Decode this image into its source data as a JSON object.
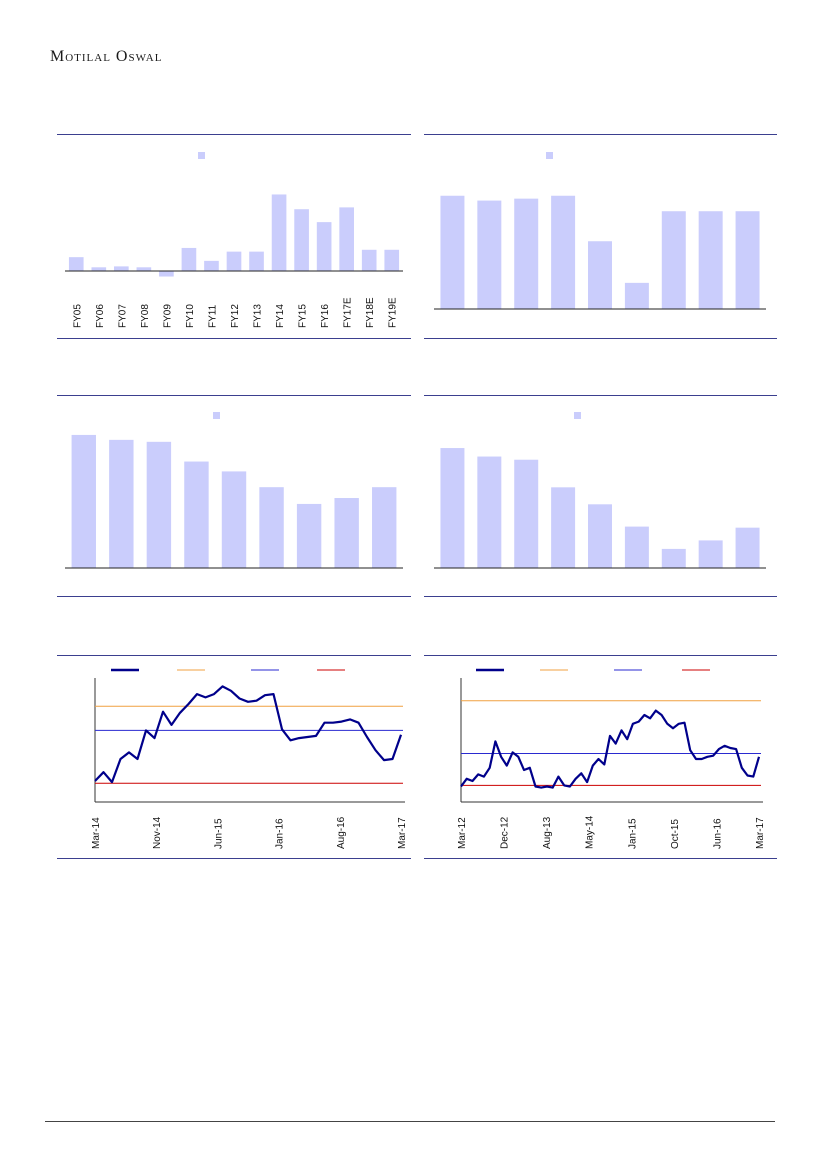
{
  "header": {
    "logo": "Motilal Oswal"
  },
  "colors": {
    "bar": "#cacdfc",
    "line_main": "#00008b",
    "line_upper": "#f0a040",
    "line_mid": "#2a2ad0",
    "line_lower": "#cc0000",
    "rule": "#3b3f8f"
  },
  "chart_data": [
    {
      "type": "bar",
      "categories": [
        "FY05",
        "FY06",
        "FY07",
        "FY08",
        "FY09",
        "FY10",
        "FY11",
        "FY12",
        "FY13",
        "FY14",
        "FY15",
        "FY16",
        "FY17E",
        "FY18E",
        "FY19E"
      ],
      "values": [
        15,
        4,
        5,
        4,
        -6,
        25,
        11,
        21,
        21,
        83,
        67,
        53,
        69,
        23,
        23
      ],
      "ylim": [
        -10,
        90
      ]
    },
    {
      "type": "bar",
      "categories": [
        "",
        "",
        "",
        "",
        "",
        "",
        "",
        "",
        ""
      ],
      "values": [
        117,
        112,
        114,
        117,
        70,
        27,
        101,
        101,
        101
      ],
      "ylim": [
        0,
        125
      ]
    },
    {
      "type": "bar",
      "categories": [
        "",
        "",
        "",
        "",
        "",
        "",
        "",
        "",
        ""
      ],
      "values": [
        135,
        130,
        128,
        108,
        98,
        82,
        65,
        71,
        82
      ],
      "ylim": [
        0,
        140
      ]
    },
    {
      "type": "bar",
      "categories": [
        "",
        "",
        "",
        "",
        "",
        "",
        "",
        "",
        ""
      ],
      "values": [
        113,
        105,
        102,
        76,
        60,
        39,
        18,
        26,
        38
      ],
      "ylim": [
        0,
        130
      ]
    },
    {
      "type": "line",
      "x_ticks": [
        "Mar-14",
        "Nov-14",
        "Jun-15",
        "Jan-16",
        "Aug-16",
        "Mar-17"
      ],
      "series": [
        {
          "values": [
            10,
            18,
            9,
            30,
            36,
            30,
            56,
            49,
            73,
            61,
            72,
            80,
            89,
            86,
            89,
            96,
            92,
            85,
            82,
            83,
            88,
            89,
            57,
            47,
            49,
            50,
            51,
            63,
            63,
            64,
            66,
            63,
            50,
            38,
            29,
            30,
            52
          ]
        }
      ],
      "reference_lines": {
        "upper": 78,
        "mid": 56,
        "lower": 8
      },
      "ylim": [
        0,
        100
      ]
    },
    {
      "type": "line",
      "x_ticks": [
        "Mar-12",
        "Dec-12",
        "Aug-13",
        "May-14",
        "Jan-15",
        "Oct-15",
        "Jun-16",
        "Mar-17"
      ],
      "series": [
        {
          "values": [
            5,
            12,
            10,
            16,
            14,
            22,
            46,
            32,
            24,
            36,
            32,
            20,
            22,
            5,
            4,
            5,
            4,
            14,
            6,
            5,
            12,
            17,
            9,
            24,
            30,
            25,
            51,
            44,
            56,
            48,
            62,
            64,
            70,
            67,
            74,
            70,
            62,
            58,
            62,
            63,
            38,
            30,
            30,
            32,
            33,
            39,
            42,
            40,
            39,
            22,
            15,
            14,
            32
          ]
        }
      ],
      "reference_lines": {
        "upper": 83,
        "mid": 35,
        "lower": 6
      },
      "ylim": [
        0,
        100
      ]
    }
  ]
}
